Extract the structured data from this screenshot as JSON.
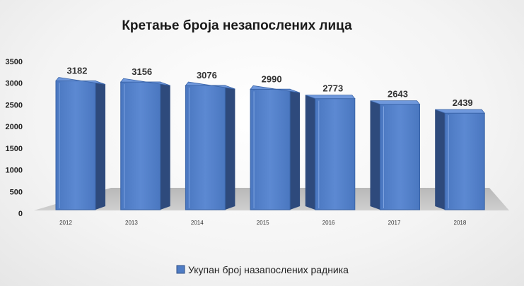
{
  "chart_data": {
    "type": "bar",
    "title": "Кретање броја незапослених лица",
    "categories": [
      "2012",
      "2013",
      "2014",
      "2015",
      "2016",
      "2017",
      "2018"
    ],
    "series": [
      {
        "name": "Укупан број назапослених радника",
        "values": [
          3182,
          3156,
          3076,
          2990,
          2773,
          2643,
          2439
        ],
        "color": "#4f7cc4"
      }
    ],
    "y_ticks": [
      "0",
      "500",
      "1000",
      "1500",
      "2000",
      "2500",
      "3000",
      "3500"
    ],
    "ylim": [
      0,
      3500
    ],
    "legend_position": "bottom",
    "style": "3d-column",
    "grid": false
  }
}
